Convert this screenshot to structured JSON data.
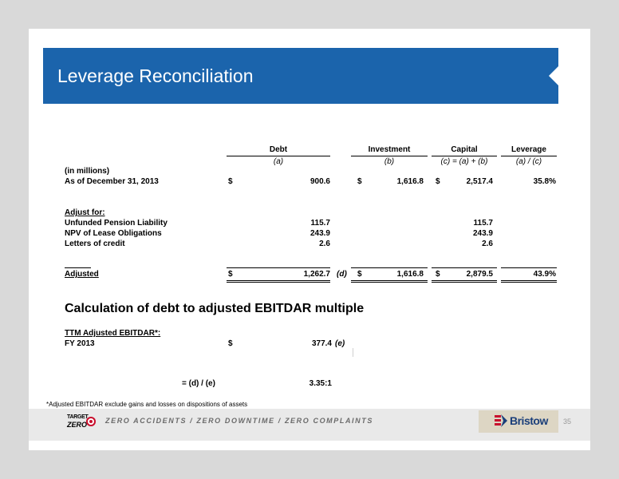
{
  "title": "Leverage Reconciliation",
  "columns": {
    "debt": {
      "label": "Debt",
      "sub": "(a)"
    },
    "investment": {
      "label": "Investment",
      "sub": "(b)"
    },
    "capital": {
      "label": "Capital",
      "sub": "(c)  = (a) + (b)"
    },
    "leverage": {
      "label": "Leverage",
      "sub": "(a) / (c)"
    }
  },
  "units_label": "(in millions)",
  "as_of": {
    "label": "As of December 31, 2013",
    "debt_dollar": "$",
    "debt": "900.6",
    "investment_dollar": "$",
    "investment": "1,616.8",
    "capital_dollar": "$",
    "capital": "2,517.4",
    "leverage": "35.8%"
  },
  "adjust_header": "Adjust for:",
  "adjustments": [
    {
      "label": "Unfunded Pension Liability",
      "debt": "115.7",
      "capital": "115.7"
    },
    {
      "label": "NPV of Lease Obligations",
      "debt": "243.9",
      "capital": "243.9"
    },
    {
      "label": "Letters of credit",
      "debt": "2.6",
      "capital": "2.6"
    }
  ],
  "adjusted": {
    "label": "Adjusted",
    "debt_dollar": "$",
    "debt": "1,262.7",
    "debt_note": "(d)",
    "investment_dollar": "$",
    "investment": "1,616.8",
    "capital_dollar": "$",
    "capital": "2,879.5",
    "leverage": "43.9%"
  },
  "section2_title": "Calculation of debt to adjusted EBITDAR multiple",
  "ttm_header": "TTM Adjusted EBITDAR*:",
  "fy": {
    "label": "FY 2013",
    "dollar": "$",
    "value": "377.4",
    "note": "(e)"
  },
  "ratio": {
    "label": "= (d) / (e)",
    "value": "3.35:1"
  },
  "footnote": "*Adjusted EBITDAR exclude gains and losses on dispositions of assets",
  "footer": {
    "logo_target": "TARGET",
    "logo_zero": "ZERO",
    "slogan": "ZERO ACCIDENTS / ZERO DOWNTIME / ZERO COMPLAINTS",
    "brand": "Bristow",
    "page_number": "35"
  },
  "colors": {
    "banner": "#1b64ac",
    "brand": "#1b3f7a",
    "target_red": "#c8102e"
  }
}
